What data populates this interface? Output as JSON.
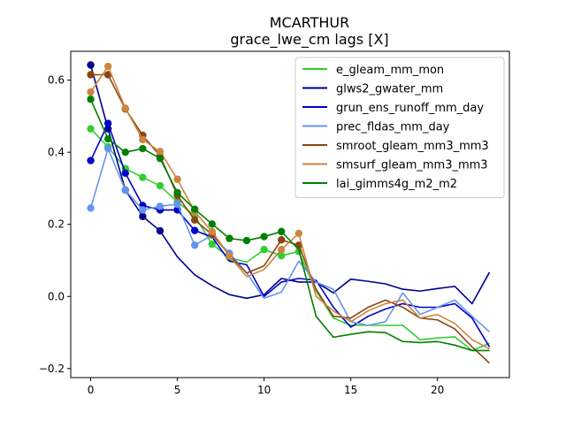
{
  "chart_data": {
    "type": "line",
    "title": "MCARTHUR",
    "subtitle": "grace_lwe_cm lags [X]",
    "xlabel": "",
    "ylabel": "",
    "xlim": [
      -1.15,
      24.15
    ],
    "ylim": [
      -0.225,
      0.68
    ],
    "xticks": [
      0,
      5,
      10,
      15,
      20
    ],
    "yticks": [
      -0.2,
      0.0,
      0.2,
      0.4,
      0.6
    ],
    "grid": false,
    "legend_position": "upper right",
    "x": [
      0,
      1,
      2,
      3,
      4,
      5,
      6,
      7,
      8,
      9,
      10,
      11,
      12,
      13,
      14,
      15,
      16,
      17,
      18,
      19,
      20,
      21,
      22,
      23
    ],
    "series": [
      {
        "name": "e_gleam_mm_mon",
        "color": "#32cd32",
        "values": [
          0.465,
          0.415,
          0.355,
          0.33,
          0.307,
          0.262,
          0.224,
          0.145,
          0.108,
          0.095,
          0.13,
          0.113,
          0.125,
          0.015,
          -0.06,
          -0.08,
          -0.08,
          -0.08,
          -0.08,
          -0.12,
          -0.115,
          -0.112,
          -0.15,
          -0.13
        ],
        "markers": [
          0,
          1,
          2,
          3,
          4,
          5,
          6,
          7,
          8,
          10,
          11,
          12
        ]
      },
      {
        "name": "glws2_gwater_mm",
        "color": "#00008b",
        "values": [
          0.642,
          0.465,
          0.295,
          0.222,
          0.182,
          0.11,
          0.06,
          0.03,
          0.005,
          -0.005,
          0.005,
          0.05,
          0.04,
          0.04,
          0.01,
          0.048,
          0.042,
          0.035,
          0.02,
          0.015,
          0.022,
          0.028,
          -0.02,
          0.067
        ],
        "markers": [
          0,
          1,
          2,
          3,
          4
        ]
      },
      {
        "name": "grun_ens_runoff_mm_day",
        "color": "#0000cd",
        "values": [
          0.377,
          0.48,
          0.342,
          0.252,
          0.24,
          0.24,
          0.183,
          0.165,
          0.098,
          0.088,
          0.0,
          0.04,
          0.05,
          0.045,
          -0.03,
          -0.085,
          -0.055,
          -0.035,
          -0.02,
          -0.03,
          -0.03,
          -0.02,
          -0.06,
          -0.14
        ],
        "markers": [
          0,
          1,
          2,
          3,
          4,
          5,
          6
        ]
      },
      {
        "name": "prec_fldas_mm_day",
        "color": "#6495ed",
        "values": [
          0.245,
          0.41,
          0.295,
          0.24,
          0.25,
          0.256,
          0.142,
          0.17,
          0.12,
          0.065,
          -0.005,
          0.012,
          0.098,
          0.04,
          0.02,
          -0.07,
          -0.08,
          -0.07,
          0.01,
          -0.05,
          -0.03,
          -0.01,
          -0.055,
          -0.098
        ],
        "markers": [
          0,
          1,
          2,
          3,
          4,
          5,
          6,
          7,
          8
        ]
      },
      {
        "name": "smroot_gleam_mm3_mm3",
        "color": "#8b4513",
        "values": [
          0.615,
          0.615,
          0.52,
          0.447,
          0.39,
          0.28,
          0.212,
          0.172,
          0.115,
          0.065,
          0.085,
          0.157,
          0.142,
          0.02,
          -0.055,
          -0.06,
          -0.03,
          -0.01,
          -0.03,
          -0.06,
          -0.065,
          -0.09,
          -0.14,
          -0.185
        ],
        "markers": [
          0,
          1,
          2,
          3,
          4,
          5,
          6,
          7,
          11,
          12
        ]
      },
      {
        "name": "smsurf_gleam_mm3_mm3",
        "color": "#cd853f",
        "values": [
          0.567,
          0.638,
          0.522,
          0.435,
          0.402,
          0.325,
          0.235,
          0.18,
          0.112,
          0.055,
          0.075,
          0.13,
          0.175,
          0.0,
          -0.04,
          -0.07,
          -0.04,
          -0.02,
          -0.01,
          -0.06,
          -0.05,
          -0.075,
          -0.12,
          -0.145
        ],
        "markers": [
          0,
          1,
          2,
          3,
          4,
          5,
          6,
          7,
          8,
          11,
          12
        ]
      },
      {
        "name": "lai_gimms4g_m2_m2",
        "color": "#008000",
        "values": [
          0.547,
          0.437,
          0.4,
          0.41,
          0.383,
          0.288,
          0.242,
          0.201,
          0.161,
          0.155,
          0.166,
          0.18,
          0.13,
          -0.055,
          -0.113,
          -0.105,
          -0.098,
          -0.1,
          -0.125,
          -0.128,
          -0.125,
          -0.135,
          -0.15,
          -0.15
        ],
        "markers": [
          0,
          1,
          2,
          3,
          4,
          5,
          6,
          7,
          8,
          9,
          10,
          11
        ]
      }
    ]
  }
}
